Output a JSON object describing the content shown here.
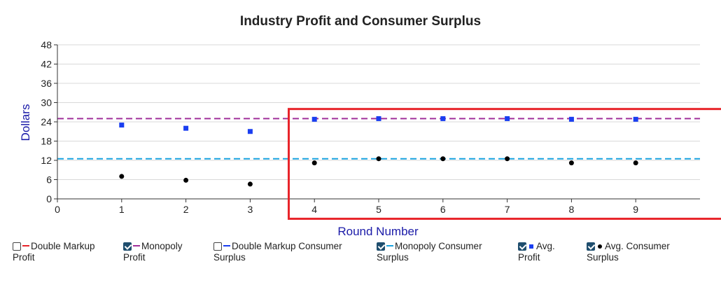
{
  "chart_data": {
    "type": "scatter",
    "title": "Industry Profit and Consumer Surplus",
    "xlabel": "Round Number",
    "ylabel": "Dollars",
    "xlim": [
      0,
      10
    ],
    "ylim": [
      0,
      48
    ],
    "xticks": [
      0,
      1,
      2,
      3,
      4,
      5,
      6,
      7,
      8,
      9
    ],
    "yticks": [
      0,
      6,
      12,
      18,
      24,
      30,
      36,
      42,
      48
    ],
    "grid": "horizontal",
    "reference_lines": [
      {
        "name": "Monopoly Profit",
        "y": 25,
        "color": "#a0309a",
        "style": "dashed"
      },
      {
        "name": "Monopoly Consumer Surplus",
        "y": 12.5,
        "color": "#1aa3e0",
        "style": "dashed"
      }
    ],
    "series": [
      {
        "name": "Avg. Profit",
        "marker": "square",
        "color": "#1a3ef0",
        "x": [
          1,
          2,
          3,
          4,
          5,
          6,
          7,
          8,
          9
        ],
        "values": [
          23,
          22,
          21,
          24.8,
          25,
          25,
          25,
          24.8,
          24.8
        ]
      },
      {
        "name": "Avg. Consumer Surplus",
        "marker": "circle",
        "color": "#000000",
        "x": [
          1,
          2,
          3,
          4,
          5,
          6,
          7,
          8,
          9
        ],
        "values": [
          7,
          5.8,
          4.6,
          11.2,
          12.5,
          12.5,
          12.5,
          11.2,
          11.2
        ]
      }
    ],
    "highlight_box": {
      "x_from": 3.6,
      "x_to": 10.4,
      "y_from": -6.2,
      "y_to": 28,
      "color": "#e8242a"
    }
  },
  "legend": {
    "items": [
      {
        "line1": "Double Markup",
        "line2": "Profit",
        "checked": false,
        "swatch": "line",
        "color": "#e8242a"
      },
      {
        "line1": "Monopoly",
        "line2": "Profit",
        "checked": true,
        "swatch": "line",
        "color": "#a0309a"
      },
      {
        "line1": "Double Markup Consumer",
        "line2": "Surplus",
        "checked": false,
        "swatch": "line",
        "color": "#1a3ef0"
      },
      {
        "line1": "Monopoly Consumer",
        "line2": "Surplus",
        "checked": true,
        "swatch": "line",
        "color": "#1aa3e0"
      },
      {
        "line1": "Avg.",
        "line2": "Profit",
        "checked": true,
        "swatch": "square",
        "color": "#1a3ef0"
      },
      {
        "line1": "Avg. Consumer",
        "line2": "Surplus",
        "checked": true,
        "swatch": "dot",
        "color": "#000000"
      }
    ]
  }
}
